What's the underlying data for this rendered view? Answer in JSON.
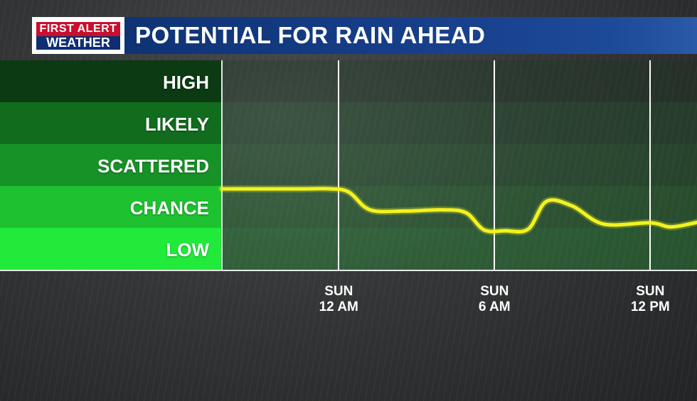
{
  "header": {
    "logo_top": "FIRST ALERT",
    "logo_bottom": "WEATHER",
    "title": "POTENTIAL FOR RAIN AHEAD"
  },
  "colors": {
    "header_blue": "#173f8a",
    "logo_red": "#c8102e",
    "line_yellow": "#f2f21e",
    "level_colors": [
      "#0b3a13",
      "#116c1d",
      "#179227",
      "#1ec12f",
      "#21ea3a"
    ]
  },
  "chart_data": {
    "type": "line",
    "title": "POTENTIAL FOR RAIN AHEAD",
    "y_categories": [
      "LOW",
      "CHANCE",
      "SCATTERED",
      "LIKELY",
      "HIGH"
    ],
    "ylim": [
      0,
      5
    ],
    "x_ticks": [
      {
        "day": "SUN",
        "time": "12 AM",
        "hour": 0
      },
      {
        "day": "SUN",
        "time": "6 AM",
        "hour": 6
      },
      {
        "day": "SUN",
        "time": "12 PM",
        "hour": 12
      }
    ],
    "xlim": [
      -4.5,
      13.8
    ],
    "series": [
      {
        "values": [
          {
            "x": -4.5,
            "y": 1.93
          },
          {
            "x": -1.5,
            "y": 1.93
          },
          {
            "x": -0.3,
            "y": 1.93
          },
          {
            "x": 0.4,
            "y": 1.85
          },
          {
            "x": 1.2,
            "y": 1.43
          },
          {
            "x": 2.5,
            "y": 1.4
          },
          {
            "x": 4.0,
            "y": 1.43
          },
          {
            "x": 4.9,
            "y": 1.36
          },
          {
            "x": 5.6,
            "y": 0.95
          },
          {
            "x": 6.4,
            "y": 0.93
          },
          {
            "x": 7.3,
            "y": 0.97
          },
          {
            "x": 8.0,
            "y": 1.63
          },
          {
            "x": 9.0,
            "y": 1.52
          },
          {
            "x": 10.2,
            "y": 1.09
          },
          {
            "x": 12.0,
            "y": 1.12
          },
          {
            "x": 12.8,
            "y": 1.02
          },
          {
            "x": 13.8,
            "y": 1.13
          }
        ]
      }
    ],
    "grid": "vertical lines at tick hours",
    "legend": "none"
  }
}
